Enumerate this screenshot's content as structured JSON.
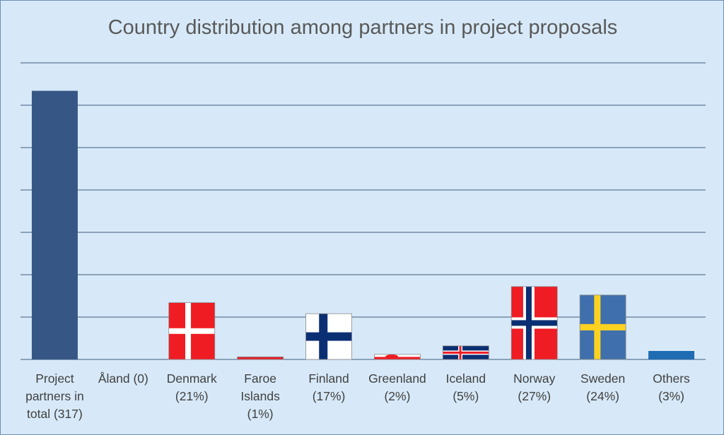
{
  "chart_data": {
    "type": "bar",
    "title": "Country distribution among partners in project proposals",
    "xlabel": "",
    "ylabel": "",
    "categories": [
      "Project partners in total (317)",
      "Åland (0)",
      "Denmark (21%)",
      "Faroe Islands (1%)",
      "Finland (17%)",
      "Greenland (2%)",
      "Iceland (5%)",
      "Norway (27%)",
      "Sweden (24%)",
      "Others (3%)"
    ],
    "label_lines": [
      [
        "Project",
        "partners in",
        "total (317)"
      ],
      [
        "Åland (0)"
      ],
      [
        "Denmark",
        "(21%)"
      ],
      [
        "Faroe",
        "Islands",
        "(1%)"
      ],
      [
        "Finland",
        "(17%)"
      ],
      [
        "Greenland",
        "(2%)"
      ],
      [
        "Iceland",
        "(5%)"
      ],
      [
        "Norway",
        "(27%)"
      ],
      [
        "Sweden",
        "(24%)"
      ],
      [
        "Others",
        "(3%)"
      ]
    ],
    "values": [
      317,
      0,
      67,
      3,
      54,
      6,
      16,
      86,
      76,
      10
    ],
    "ylim": [
      0,
      350
    ],
    "gridlines": [
      0,
      50,
      100,
      150,
      200,
      250,
      300,
      350
    ],
    "grid": true,
    "legend": "none",
    "bar_fills": [
      "solid",
      "none",
      "flag-denmark",
      "flag-faroe",
      "flag-finland",
      "flag-greenland",
      "flag-iceland",
      "flag-norway",
      "flag-sweden",
      "solid"
    ]
  },
  "colors": {
    "background": "#d7e9f8",
    "gridline": "#3d5a80",
    "total_bar": "#365786",
    "others_bar": "#1f6cb3",
    "flag_red": "#ef1c24",
    "flag_blue": "#0b2f73",
    "flag_white": "#ffffff",
    "sweden_blue": "#3f6fac",
    "sweden_yellow": "#fbd221",
    "title_text": "#595959",
    "label_text": "#404040"
  }
}
